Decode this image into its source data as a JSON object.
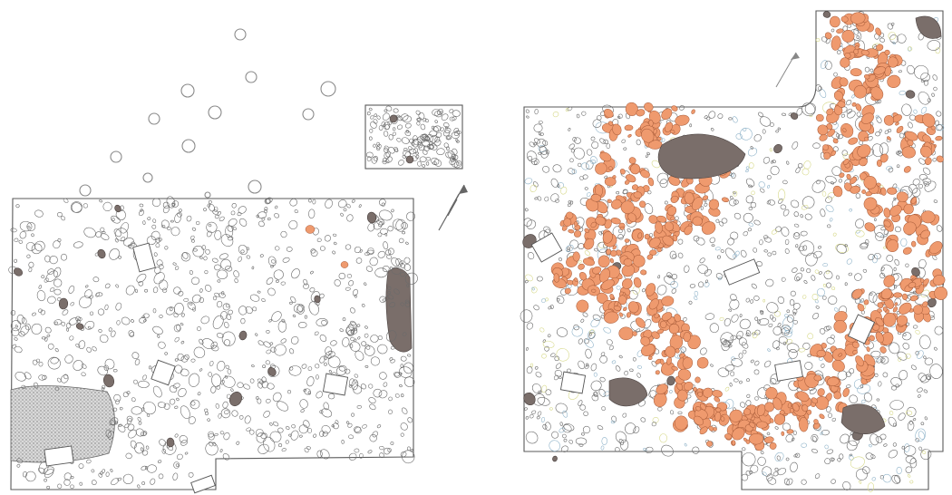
{
  "figure": {
    "panels": [
      {
        "id": "left-plan",
        "has_color_fill": false
      },
      {
        "id": "right-plan",
        "has_color_fill": true
      }
    ],
    "colors": {
      "outline": "#5a5a5a",
      "stone": "#6b6b6b",
      "burnt_stone": "#ef9a6e",
      "burnt_stone_edge": "#a65a38",
      "dark_stone": "#7a6e6a",
      "light_stone_blue": "#8fb3c9",
      "light_stone_yellow": "#d7d98a",
      "background": "#ffffff"
    },
    "icons": [
      "north-arrow-icon",
      "north-arrow-icon"
    ]
  }
}
